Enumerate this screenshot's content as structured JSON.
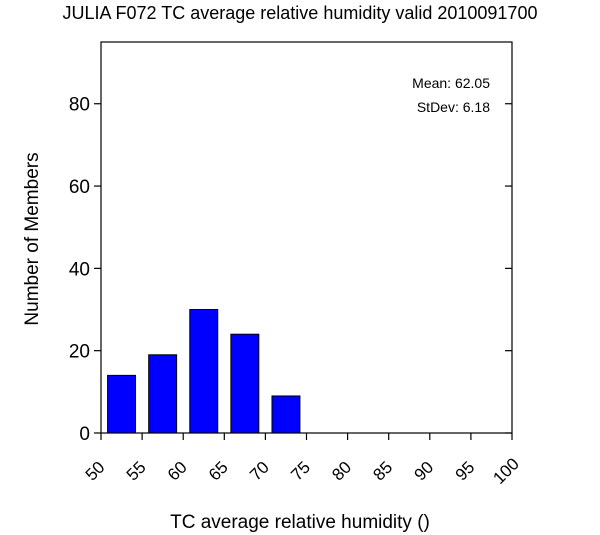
{
  "chart_data": {
    "type": "bar",
    "title": "JULIA F072 TC average relative humidity valid 2010091700",
    "xlabel": "TC average relative humidity ()",
    "ylabel": "Number of Members",
    "bin_edges": [
      50,
      55,
      60,
      65,
      70,
      75
    ],
    "values": [
      14,
      19,
      30,
      24,
      9
    ],
    "bar_color": "#0000ff",
    "xlim": [
      50,
      100
    ],
    "ylim": [
      0,
      95
    ],
    "x_ticks": [
      50,
      55,
      60,
      65,
      70,
      75,
      80,
      85,
      90,
      95,
      100
    ],
    "y_ticks": [
      0,
      20,
      40,
      60,
      80
    ],
    "x_tick_labels": [
      "50",
      "55",
      "60",
      "65",
      "70",
      "75",
      "80",
      "85",
      "90",
      "95",
      "100"
    ],
    "y_tick_labels": [
      "0",
      "20",
      "40",
      "60",
      "80"
    ],
    "stats": {
      "mean_label": "Mean: 62.05",
      "stdev_label": "StDev: 6.18"
    },
    "grid": false
  }
}
